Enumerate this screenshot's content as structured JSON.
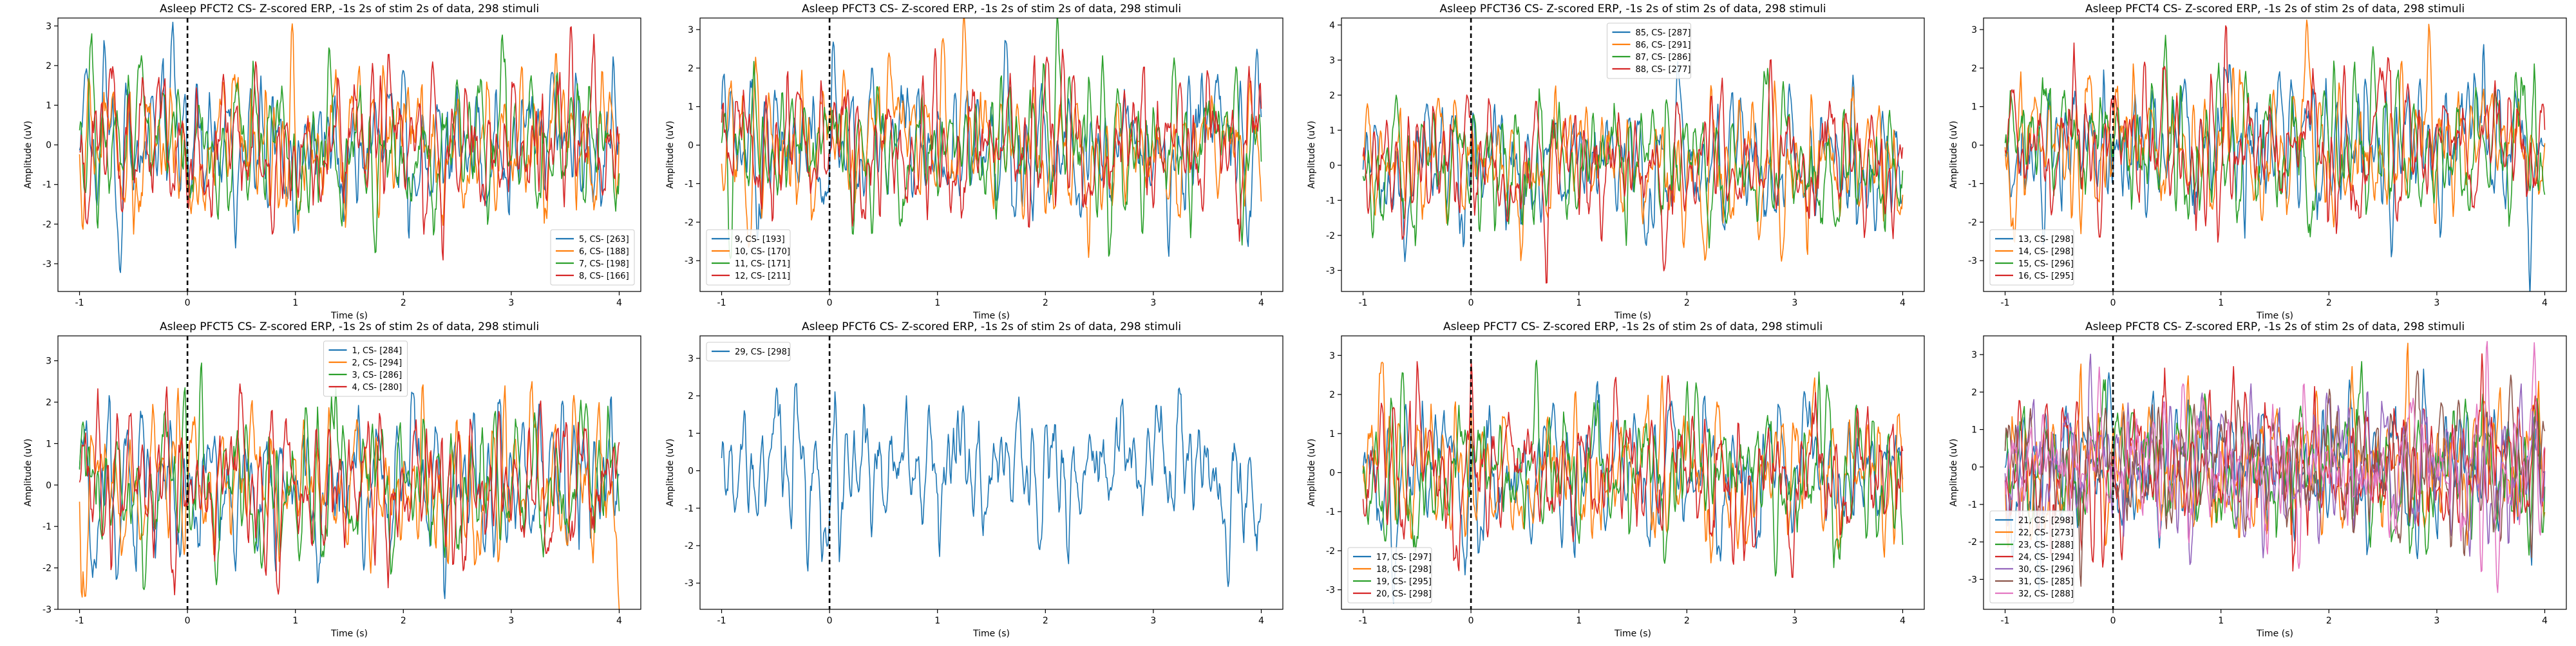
{
  "figure": {
    "colors": {
      "C0": "#1f77b4",
      "C1": "#ff7f0e",
      "C2": "#2ca02c",
      "C3": "#d62728",
      "C6": "#e377c2"
    }
  },
  "chart_data": [
    {
      "type": "line",
      "title": "Asleep PFCT2 CS- Z-scored ERP, -1s 2s of stim 2s of data, 298 stimuli",
      "xlabel": "Time (s)",
      "ylabel": "Amplitude (uV)",
      "xlim": [
        -1.2,
        4.2
      ],
      "ylim": [
        -3.7,
        3.2
      ],
      "xticks": [
        -1,
        0,
        1,
        2,
        3,
        4
      ],
      "yticks": [
        -3,
        -2,
        -1,
        0,
        1,
        2,
        3
      ],
      "legend_loc": "lower-right",
      "stim_onset_line": 0,
      "grid": false,
      "series": [
        {
          "name": "5, CS- [263]",
          "color": "#1f77b4"
        },
        {
          "name": "6, CS- [188]",
          "color": "#ff7f0e"
        },
        {
          "name": "7, CS- [198]",
          "color": "#2ca02c"
        },
        {
          "name": "8, CS- [166]",
          "color": "#d62728"
        }
      ]
    },
    {
      "type": "line",
      "title": "Asleep PFCT3 CS- Z-scored ERP, -1s 2s of stim 2s of data, 298 stimuli",
      "xlabel": "Time (s)",
      "ylabel": "Amplitude (uV)",
      "xlim": [
        -1.2,
        4.2
      ],
      "ylim": [
        -3.8,
        3.3
      ],
      "xticks": [
        -1,
        0,
        1,
        2,
        3,
        4
      ],
      "yticks": [
        -3,
        -2,
        -1,
        0,
        1,
        2,
        3
      ],
      "legend_loc": "lower-left",
      "stim_onset_line": 0,
      "grid": false,
      "series": [
        {
          "name": "9, CS- [193]",
          "color": "#1f77b4"
        },
        {
          "name": "10, CS- [170]",
          "color": "#ff7f0e"
        },
        {
          "name": "11, CS- [171]",
          "color": "#2ca02c"
        },
        {
          "name": "12, CS- [211]",
          "color": "#d62728"
        }
      ]
    },
    {
      "type": "line",
      "title": "Asleep PFCT36 CS- Z-scored ERP, -1s 2s of stim 2s of data, 298 stimuli",
      "xlabel": "Time (s)",
      "ylabel": "Amplitude (uV)",
      "xlim": [
        -1.2,
        4.2
      ],
      "ylim": [
        -3.6,
        4.2
      ],
      "xticks": [
        -1,
        0,
        1,
        2,
        3,
        4
      ],
      "yticks": [
        -3,
        -2,
        -1,
        0,
        1,
        2,
        3,
        4
      ],
      "legend_loc": "upper-center",
      "stim_onset_line": 0,
      "grid": false,
      "series": [
        {
          "name": "85, CS- [287]",
          "color": "#1f77b4"
        },
        {
          "name": "86, CS- [291]",
          "color": "#ff7f0e"
        },
        {
          "name": "87, CS- [286]",
          "color": "#2ca02c"
        },
        {
          "name": "88, CS- [277]",
          "color": "#d62728"
        }
      ]
    },
    {
      "type": "line",
      "title": "Asleep PFCT4 CS- Z-scored ERP, -1s 2s of stim 2s of data, 298 stimuli",
      "xlabel": "Time (s)",
      "ylabel": "Amplitude (uV)",
      "xlim": [
        -1.2,
        4.2
      ],
      "ylim": [
        -3.8,
        3.3
      ],
      "xticks": [
        -1,
        0,
        1,
        2,
        3,
        4
      ],
      "yticks": [
        -3,
        -2,
        -1,
        0,
        1,
        2,
        3
      ],
      "legend_loc": "lower-left",
      "stim_onset_line": 0,
      "grid": false,
      "series": [
        {
          "name": "13, CS- [298]",
          "color": "#1f77b4"
        },
        {
          "name": "14, CS- [298]",
          "color": "#ff7f0e"
        },
        {
          "name": "15, CS- [296]",
          "color": "#2ca02c"
        },
        {
          "name": "16, CS- [295]",
          "color": "#d62728"
        }
      ]
    },
    {
      "type": "line",
      "title": "Asleep PFCT5 CS- Z-scored ERP, -1s 2s of stim 2s of data, 298 stimuli",
      "xlabel": "Time (s)",
      "ylabel": "Amplitude (uV)",
      "xlim": [
        -1.2,
        4.2
      ],
      "ylim": [
        -3.0,
        3.6
      ],
      "xticks": [
        -1,
        0,
        1,
        2,
        3,
        4
      ],
      "yticks": [
        -3,
        -2,
        -1,
        0,
        1,
        2,
        3
      ],
      "legend_loc": "upper-center",
      "stim_onset_line": 0,
      "grid": false,
      "series": [
        {
          "name": "1, CS- [284]",
          "color": "#1f77b4"
        },
        {
          "name": "2, CS- [294]",
          "color": "#ff7f0e"
        },
        {
          "name": "3, CS- [286]",
          "color": "#2ca02c"
        },
        {
          "name": "4, CS- [280]",
          "color": "#d62728"
        }
      ]
    },
    {
      "type": "line",
      "title": "Asleep PFCT6 CS- Z-scored ERP, -1s 2s of stim 2s of data, 298 stimuli",
      "xlabel": "Time (s)",
      "ylabel": "Amplitude (uV)",
      "xlim": [
        -1.2,
        4.2
      ],
      "ylim": [
        -3.7,
        3.6
      ],
      "xticks": [
        -1,
        0,
        1,
        2,
        3,
        4
      ],
      "yticks": [
        -3,
        -2,
        -1,
        0,
        1,
        2,
        3
      ],
      "legend_loc": "upper-left",
      "stim_onset_line": 0,
      "grid": false,
      "series": [
        {
          "name": "29, CS- [298]",
          "color": "#1f77b4"
        }
      ]
    },
    {
      "type": "line",
      "title": "Asleep PFCT7 CS- Z-scored ERP, -1s 2s of stim 2s of data, 298 stimuli",
      "xlabel": "Time (s)",
      "ylabel": "Amplitude (uV)",
      "xlim": [
        -1.2,
        4.2
      ],
      "ylim": [
        -3.5,
        3.5
      ],
      "xticks": [
        -1,
        0,
        1,
        2,
        3,
        4
      ],
      "yticks": [
        -3,
        -2,
        -1,
        0,
        1,
        2,
        3
      ],
      "legend_loc": "lower-left",
      "stim_onset_line": 0,
      "grid": false,
      "series": [
        {
          "name": "17, CS- [297]",
          "color": "#1f77b4"
        },
        {
          "name": "18, CS- [298]",
          "color": "#ff7f0e"
        },
        {
          "name": "19, CS- [295]",
          "color": "#2ca02c"
        },
        {
          "name": "20, CS- [298]",
          "color": "#d62728"
        }
      ]
    },
    {
      "type": "line",
      "title": "Asleep PFCT8 CS- Z-scored ERP, -1s 2s of stim 2s of data, 298 stimuli",
      "xlabel": "Time (s)",
      "ylabel": "Amplitude (uV)",
      "xlim": [
        -1.2,
        4.2
      ],
      "ylim": [
        -3.8,
        3.5
      ],
      "xticks": [
        -1,
        0,
        1,
        2,
        3,
        4
      ],
      "yticks": [
        -3,
        -2,
        -1,
        0,
        1,
        2,
        3
      ],
      "legend_loc": "lower-left",
      "stim_onset_line": 0,
      "grid": false,
      "series": [
        {
          "name": "21, CS- [298]",
          "color": "#1f77b4"
        },
        {
          "name": "22, CS- [273]",
          "color": "#ff7f0e"
        },
        {
          "name": "23, CS- [288]",
          "color": "#2ca02c"
        },
        {
          "name": "24, CS- [294]",
          "color": "#d62728"
        },
        {
          "name": "30, CS- [296]",
          "color": "#9467bd"
        },
        {
          "name": "31, CS- [285]",
          "color": "#8c564b"
        },
        {
          "name": "32, CS- [288]",
          "color": "#e377c2"
        }
      ]
    }
  ]
}
